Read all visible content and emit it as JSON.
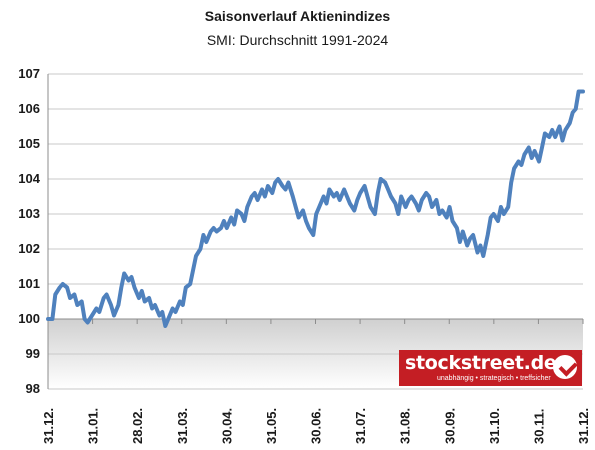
{
  "chart_data": {
    "type": "line",
    "title": "Saisonverlauf Aktienindizes",
    "subtitle": "SMI: Durchschnitt 1991-2024",
    "xlabel": "",
    "ylabel": "",
    "ylim": [
      98,
      107
    ],
    "yticks": [
      "98",
      "99",
      "100",
      "101",
      "102",
      "103",
      "104",
      "105",
      "106",
      "107"
    ],
    "xticks": [
      "31.12.",
      "31.01.",
      "28.02.",
      "31.03.",
      "30.04.",
      "31.05.",
      "30.06.",
      "31.07.",
      "31.08.",
      "30.09.",
      "31.10.",
      "30.11.",
      "31.12."
    ],
    "xlim": [
      0,
      365
    ],
    "grid": true,
    "legend": "none",
    "baseline": 100,
    "series": [
      {
        "color": "#4f81bd",
        "x": [
          0,
          3,
          5,
          8,
          10,
          13,
          15,
          18,
          20,
          23,
          25,
          27,
          30,
          33,
          35,
          38,
          40,
          43,
          45,
          48,
          50,
          52,
          55,
          57,
          59,
          62,
          64,
          66,
          69,
          71,
          73,
          76,
          78,
          80,
          83,
          85,
          87,
          90,
          92,
          94,
          97,
          99,
          101,
          104,
          106,
          108,
          111,
          113,
          115,
          118,
          120,
          122,
          125,
          127,
          129,
          132,
          134,
          136,
          139,
          141,
          143,
          146,
          148,
          150,
          153,
          155,
          157,
          160,
          162,
          164,
          167,
          169,
          171,
          174,
          176,
          178,
          181,
          183,
          185,
          188,
          190,
          192,
          195,
          197,
          199,
          202,
          204,
          206,
          209,
          211,
          213,
          216,
          218,
          220,
          223,
          225,
          227,
          230,
          232,
          234,
          237,
          239,
          241,
          244,
          246,
          248,
          251,
          253,
          255,
          258,
          260,
          262,
          265,
          267,
          269,
          272,
          274,
          276,
          279,
          281,
          283,
          286,
          288,
          290,
          293,
          295,
          297,
          300,
          302,
          304,
          307,
          309,
          311,
          314,
          316,
          318,
          321,
          323,
          325,
          328,
          330,
          332,
          335,
          337,
          339,
          342,
          344,
          346,
          349,
          351,
          353,
          356,
          358,
          360,
          362,
          365
        ],
        "y": [
          100.0,
          100.0,
          100.7,
          100.9,
          101.0,
          100.9,
          100.6,
          100.7,
          100.4,
          100.5,
          100.0,
          99.9,
          100.1,
          100.3,
          100.2,
          100.6,
          100.7,
          100.4,
          100.1,
          100.4,
          100.9,
          101.3,
          101.1,
          101.2,
          100.9,
          100.6,
          100.8,
          100.5,
          100.6,
          100.3,
          100.4,
          100.1,
          100.2,
          99.8,
          100.1,
          100.3,
          100.2,
          100.5,
          100.4,
          100.9,
          101.0,
          101.4,
          101.8,
          102.0,
          102.4,
          102.2,
          102.5,
          102.6,
          102.5,
          102.6,
          102.8,
          102.6,
          102.9,
          102.7,
          103.1,
          103.0,
          102.8,
          103.2,
          103.5,
          103.6,
          103.4,
          103.7,
          103.5,
          103.8,
          103.6,
          103.9,
          104.0,
          103.8,
          103.7,
          103.9,
          103.5,
          103.2,
          102.9,
          103.1,
          102.8,
          102.6,
          102.4,
          103.0,
          103.2,
          103.5,
          103.3,
          103.7,
          103.5,
          103.6,
          103.4,
          103.7,
          103.5,
          103.3,
          103.1,
          103.4,
          103.6,
          103.8,
          103.5,
          103.2,
          103.0,
          103.6,
          104.0,
          103.9,
          103.7,
          103.5,
          103.3,
          103.0,
          103.5,
          103.2,
          103.4,
          103.5,
          103.3,
          103.1,
          103.4,
          103.6,
          103.5,
          103.2,
          103.4,
          103.0,
          103.1,
          102.9,
          103.2,
          102.8,
          102.6,
          102.2,
          102.5,
          102.1,
          102.3,
          102.4,
          101.9,
          102.1,
          101.8,
          102.4,
          102.9,
          103.0,
          102.8,
          103.2,
          103.0,
          103.2,
          103.9,
          104.3,
          104.5,
          104.4,
          104.7,
          104.9,
          104.6,
          104.8,
          104.5,
          104.9,
          105.3,
          105.2,
          105.4,
          105.2,
          105.5,
          105.1,
          105.4,
          105.6,
          105.9,
          106.0,
          106.5,
          106.5
        ]
      }
    ]
  }
}
